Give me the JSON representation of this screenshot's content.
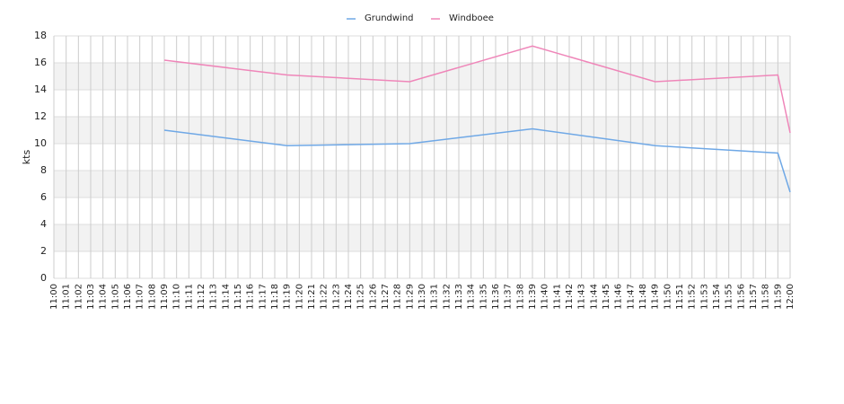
{
  "chart_data": {
    "type": "line",
    "y_label": "kts",
    "categories": [
      "11:00",
      "11:01",
      "11:02",
      "11:03",
      "11:04",
      "11:05",
      "11:06",
      "11:07",
      "11:08",
      "11:09",
      "11:10",
      "11:11",
      "11:12",
      "11:13",
      "11:14",
      "11:15",
      "11:16",
      "11:17",
      "11:18",
      "11:19",
      "11:20",
      "11:21",
      "11:22",
      "11:23",
      "11:24",
      "11:25",
      "11:26",
      "11:27",
      "11:28",
      "11:29",
      "11:30",
      "11:31",
      "11:32",
      "11:33",
      "11:34",
      "11:35",
      "11:36",
      "11:37",
      "11:38",
      "11:39",
      "11:40",
      "11:41",
      "11:42",
      "11:43",
      "11:44",
      "11:45",
      "11:46",
      "11:47",
      "11:48",
      "11:49",
      "11:50",
      "11:51",
      "11:52",
      "11:53",
      "11:54",
      "11:55",
      "11:56",
      "11:57",
      "11:58",
      "11:59",
      "12:00"
    ],
    "series": [
      {
        "name": "Grundwind",
        "color": "#6fa8e6",
        "x": [
          "11:09",
          "11:19",
          "11:29",
          "11:39",
          "11:49",
          "11:59",
          "12:00"
        ],
        "values": [
          11,
          9.85,
          10,
          11.1,
          9.85,
          9.3,
          6.4
        ]
      },
      {
        "name": "Windboee",
        "color": "#ef86b9",
        "x": [
          "11:09",
          "11:19",
          "11:29",
          "11:39",
          "11:49",
          "11:59",
          "12:00"
        ],
        "values": [
          16.2,
          15.1,
          14.6,
          17.25,
          14.6,
          15.1,
          10.8
        ]
      }
    ],
    "ylim": [
      0,
      18
    ],
    "yticks": [
      0,
      2,
      4,
      6,
      8,
      10,
      12,
      14,
      16,
      18
    ],
    "grid": true,
    "striped": true,
    "legend": "top"
  }
}
